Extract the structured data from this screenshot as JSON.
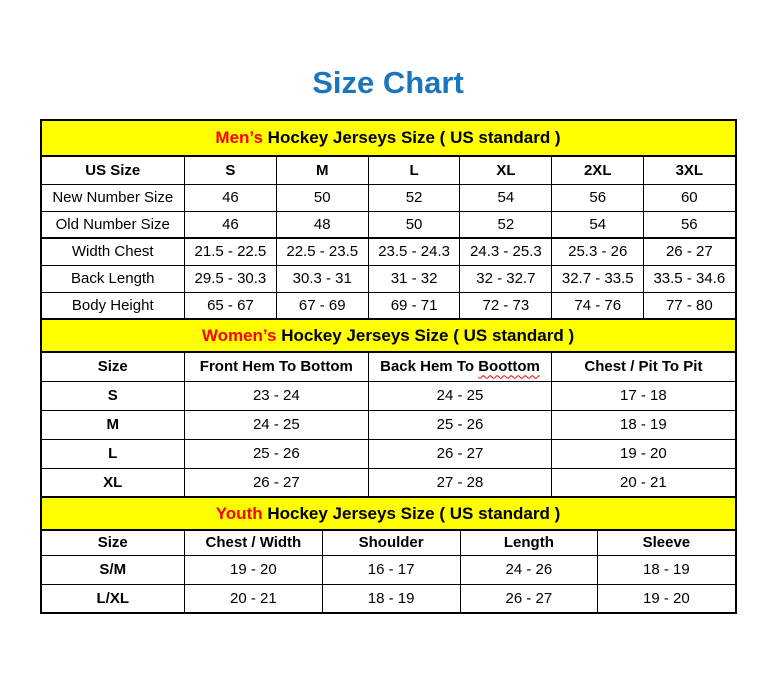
{
  "page": {
    "title": "Size Chart"
  },
  "colors": {
    "title_blue": "#1b75bc",
    "band_yellow": "#ffff00",
    "accent_red": "#ff0000",
    "border_black": "#000000"
  },
  "sections": [
    {
      "id": "men",
      "heading": {
        "highlight": "Men’s",
        "rest": " Hockey Jerseys Size ( US standard )"
      },
      "columns": [
        "US Size",
        "S",
        "M",
        "L",
        "XL",
        "2XL",
        "3XL"
      ],
      "rows": [
        [
          "New Number Size",
          "46",
          "50",
          "52",
          "54",
          "56",
          "60"
        ],
        [
          "Old Number Size",
          "46",
          "48",
          "50",
          "52",
          "54",
          "56"
        ],
        [
          "Width Chest",
          "21.5 - 22.5",
          "22.5 - 23.5",
          "23.5 - 24.3",
          "24.3 - 25.3",
          "25.3 - 26",
          "26 - 27"
        ],
        [
          "Back Length",
          "29.5 - 30.3",
          "30.3 - 31",
          "31 - 32",
          "32 - 32.7",
          "32.7 - 33.5",
          "33.5 - 34.6"
        ],
        [
          "Body Height",
          "65 - 67",
          "67 - 69",
          "69 - 71",
          "72 - 73",
          "74 - 76",
          "77 - 80"
        ]
      ],
      "bold_first_column": false
    },
    {
      "id": "women",
      "heading": {
        "highlight": "Women’s",
        "rest": " Hockey Jerseys Size ( US standard )"
      },
      "columns": [
        "Size",
        "Front Hem To Bottom",
        "Back Hem To Boottom",
        "Chest / Pit To Pit"
      ],
      "spellcheck_flag": {
        "column_index": 2,
        "prefix": "Back Hem To ",
        "flagged_word": "Boottom"
      },
      "rows": [
        [
          "S",
          "23 - 24",
          "24 - 25",
          "17 - 18"
        ],
        [
          "M",
          "24 - 25",
          "25 - 26",
          "18 - 19"
        ],
        [
          "L",
          "25 - 26",
          "26 - 27",
          "19 - 20"
        ],
        [
          "XL",
          "26 - 27",
          "27 - 28",
          "20 - 21"
        ]
      ],
      "bold_first_column": true
    },
    {
      "id": "youth",
      "heading": {
        "highlight": "Youth",
        "rest": " Hockey Jerseys Size ( US standard )"
      },
      "columns": [
        "Size",
        "Chest / Width",
        "Shoulder",
        "Length",
        "Sleeve"
      ],
      "rows": [
        [
          "S/M",
          "19 - 20",
          "16 - 17",
          "24 - 26",
          "18 - 19"
        ],
        [
          "L/XL",
          "20 - 21",
          "18 - 19",
          "26 - 27",
          "19 - 20"
        ]
      ],
      "bold_first_column": true
    }
  ]
}
